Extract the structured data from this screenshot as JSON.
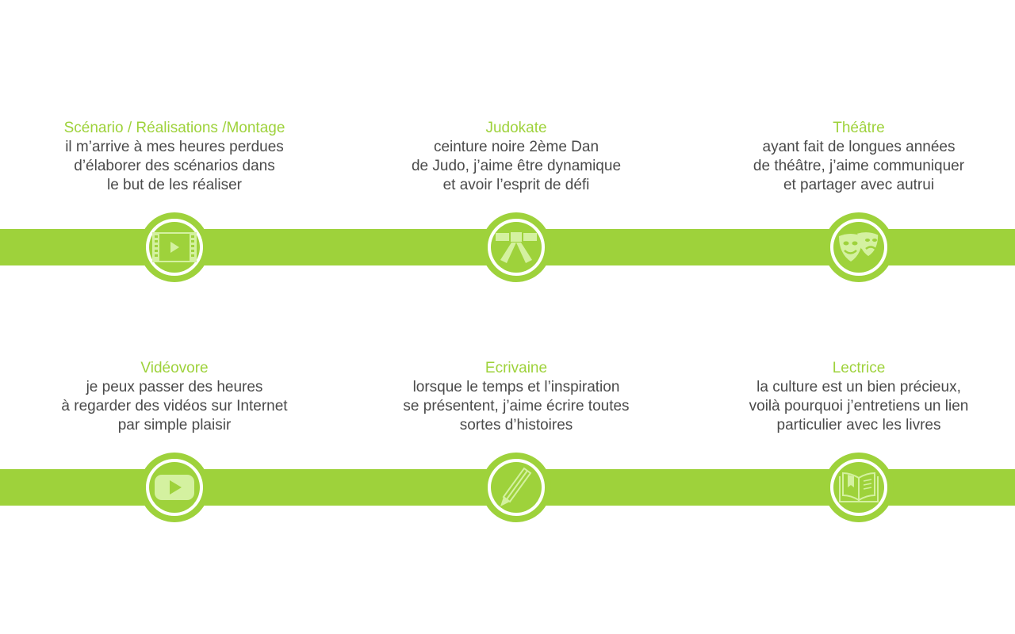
{
  "colors": {
    "accent": "#9ed23b",
    "icon_fill": "#d4f1a0",
    "text": "#4a4a4a"
  },
  "skills": [
    {
      "title": "Scénario / Réalisations /Montage",
      "lines": [
        "il m’arrive à mes heures perdues",
        "d’élaborer des scénarios dans",
        "le but de les réaliser"
      ],
      "icon": "film-play-icon"
    },
    {
      "title": "Judokate",
      "lines": [
        "ceinture noire 2ème Dan",
        "de Judo, j’aime être dynamique",
        "et avoir l’esprit de défi"
      ],
      "icon": "judo-belt-icon"
    },
    {
      "title": "Théâtre",
      "lines": [
        "ayant fait de longues années",
        "de théâtre, j’aime communiquer",
        "et partager avec autrui"
      ],
      "icon": "theatre-masks-icon"
    },
    {
      "title": "Vidéovore",
      "lines": [
        "je peux passer des heures",
        "à regarder des vidéos sur Internet",
        "par simple plaisir"
      ],
      "icon": "video-play-icon"
    },
    {
      "title": "Ecrivaine",
      "lines": [
        "lorsque le temps et l’inspiration",
        "se présentent, j’aime écrire toutes",
        "sortes d’histoires"
      ],
      "icon": "pencil-icon"
    },
    {
      "title": "Lectrice",
      "lines": [
        "la culture est un bien précieux,",
        "voilà pourquoi j’entretiens un lien",
        "particulier avec les livres"
      ],
      "icon": "open-book-icon"
    }
  ]
}
